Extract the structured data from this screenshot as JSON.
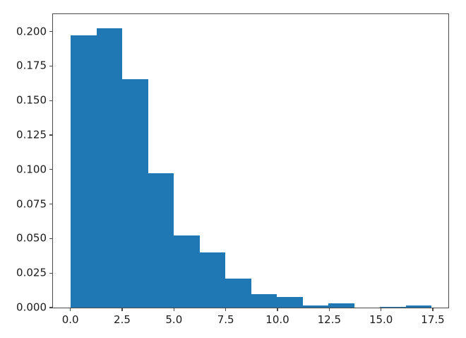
{
  "chart_data": {
    "type": "histogram",
    "title": "",
    "xlabel": "",
    "ylabel": "",
    "grid": false,
    "legend": false,
    "background_color": "#ffffff",
    "bar_color": "#1f77b4",
    "axis_color": "#4a4a4a",
    "tick_label_color": "#1a1a1a",
    "xlim": [
      -0.84,
      18.25
    ],
    "ylim": [
      0,
      0.2126
    ],
    "bins": {
      "start": 0.02,
      "width": 1.244,
      "count": 14,
      "densities": [
        0.197,
        0.2025,
        0.1655,
        0.0972,
        0.0522,
        0.0399,
        0.0212,
        0.0098,
        0.0077,
        0.0017,
        0.003,
        0.0,
        0.0006,
        0.0018
      ]
    },
    "x_ticks": [
      {
        "value": 0.0,
        "label": "0.0"
      },
      {
        "value": 2.5,
        "label": "2.5"
      },
      {
        "value": 5.0,
        "label": "5.0"
      },
      {
        "value": 7.5,
        "label": "7.5"
      },
      {
        "value": 10.0,
        "label": "10.0"
      },
      {
        "value": 12.5,
        "label": "12.5"
      },
      {
        "value": 15.0,
        "label": "15.0"
      },
      {
        "value": 17.5,
        "label": "17.5"
      }
    ],
    "y_ticks": [
      {
        "value": 0.0,
        "label": "0.000"
      },
      {
        "value": 0.025,
        "label": "0.025"
      },
      {
        "value": 0.05,
        "label": "0.050"
      },
      {
        "value": 0.075,
        "label": "0.075"
      },
      {
        "value": 0.1,
        "label": "0.100"
      },
      {
        "value": 0.125,
        "label": "0.125"
      },
      {
        "value": 0.15,
        "label": "0.150"
      },
      {
        "value": 0.175,
        "label": "0.175"
      },
      {
        "value": 0.2,
        "label": "0.200"
      }
    ]
  }
}
